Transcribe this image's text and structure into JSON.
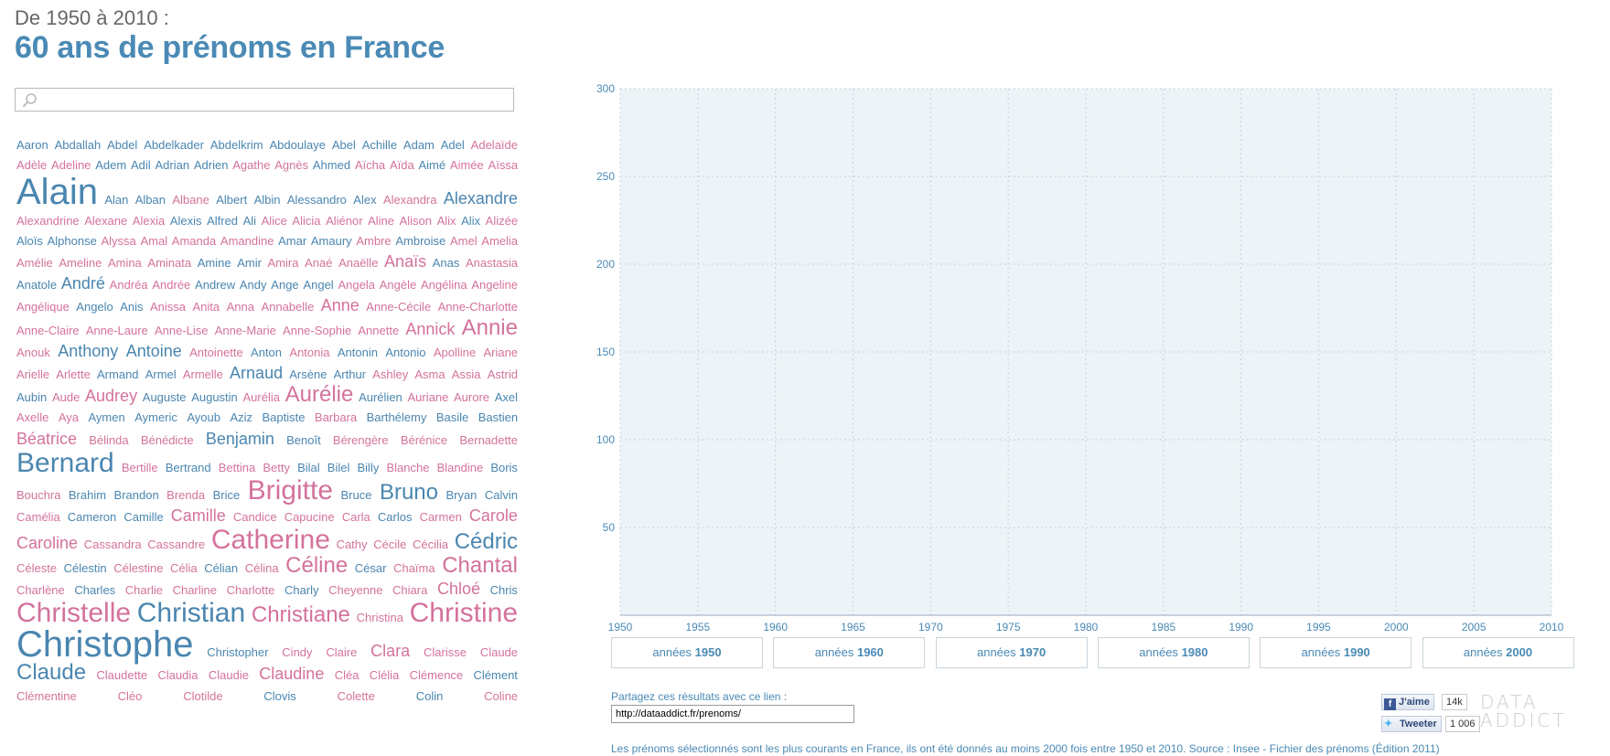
{
  "header": {
    "subtitle": "De 1950 à 2010 :",
    "title": "60 ans de prénoms en France"
  },
  "search": {
    "value": "",
    "placeholder": ""
  },
  "colors": {
    "male": "#4a86b0",
    "female": "#d4729c",
    "chart_background": "#edf4f7",
    "accent": "#4a8ab5"
  },
  "names": [
    {
      "n": "Aaron",
      "g": "m",
      "s": 1
    },
    {
      "n": "Abdallah",
      "g": "m",
      "s": 1
    },
    {
      "n": "Abdel",
      "g": "m",
      "s": 1
    },
    {
      "n": "Abdelkader",
      "g": "m",
      "s": 1
    },
    {
      "n": "Abdelkrim",
      "g": "m",
      "s": 1
    },
    {
      "n": "Abdoulaye",
      "g": "m",
      "s": 1
    },
    {
      "n": "Abel",
      "g": "m",
      "s": 1
    },
    {
      "n": "Achille",
      "g": "m",
      "s": 1
    },
    {
      "n": "Adam",
      "g": "m",
      "s": 1
    },
    {
      "n": "Adel",
      "g": "m",
      "s": 1
    },
    {
      "n": "Adelaïde",
      "g": "f",
      "s": 1
    },
    {
      "n": "Adèle",
      "g": "f",
      "s": 1
    },
    {
      "n": "Adeline",
      "g": "f",
      "s": 1
    },
    {
      "n": "Adem",
      "g": "m",
      "s": 1
    },
    {
      "n": "Adil",
      "g": "m",
      "s": 1
    },
    {
      "n": "Adrian",
      "g": "m",
      "s": 1
    },
    {
      "n": "Adrien",
      "g": "m",
      "s": 1
    },
    {
      "n": "Agathe",
      "g": "f",
      "s": 1
    },
    {
      "n": "Agnès",
      "g": "f",
      "s": 1
    },
    {
      "n": "Ahmed",
      "g": "m",
      "s": 1
    },
    {
      "n": "Aïcha",
      "g": "f",
      "s": 1
    },
    {
      "n": "Aïda",
      "g": "f",
      "s": 1
    },
    {
      "n": "Aimé",
      "g": "m",
      "s": 1
    },
    {
      "n": "Aimée",
      "g": "f",
      "s": 1
    },
    {
      "n": "Aïssa",
      "g": "f",
      "s": 1
    },
    {
      "n": "Alain",
      "g": "m",
      "s": 5
    },
    {
      "n": "Alan",
      "g": "m",
      "s": 1
    },
    {
      "n": "Alban",
      "g": "m",
      "s": 1
    },
    {
      "n": "Albane",
      "g": "f",
      "s": 1
    },
    {
      "n": "Albert",
      "g": "m",
      "s": 1
    },
    {
      "n": "Albin",
      "g": "m",
      "s": 1
    },
    {
      "n": "Alessandro",
      "g": "m",
      "s": 1
    },
    {
      "n": "Alex",
      "g": "m",
      "s": 1
    },
    {
      "n": "Alexandra",
      "g": "f",
      "s": 1
    },
    {
      "n": "Alexandre",
      "g": "m",
      "s": 2
    },
    {
      "n": "Alexandrine",
      "g": "f",
      "s": 1
    },
    {
      "n": "Alexane",
      "g": "f",
      "s": 1
    },
    {
      "n": "Alexia",
      "g": "f",
      "s": 1
    },
    {
      "n": "Alexis",
      "g": "m",
      "s": 1
    },
    {
      "n": "Alfred",
      "g": "m",
      "s": 1
    },
    {
      "n": "Ali",
      "g": "m",
      "s": 1
    },
    {
      "n": "Alice",
      "g": "f",
      "s": 1
    },
    {
      "n": "Alicia",
      "g": "f",
      "s": 1
    },
    {
      "n": "Aliénor",
      "g": "f",
      "s": 1
    },
    {
      "n": "Aline",
      "g": "f",
      "s": 1
    },
    {
      "n": "Alison",
      "g": "f",
      "s": 1
    },
    {
      "n": "Alix",
      "g": "f",
      "s": 1
    },
    {
      "n": "Alix",
      "g": "m",
      "s": 1
    },
    {
      "n": "Alizée",
      "g": "f",
      "s": 1
    },
    {
      "n": "Aloïs",
      "g": "m",
      "s": 1
    },
    {
      "n": "Alphonse",
      "g": "m",
      "s": 1
    },
    {
      "n": "Alyssa",
      "g": "f",
      "s": 1
    },
    {
      "n": "Amal",
      "g": "f",
      "s": 1
    },
    {
      "n": "Amanda",
      "g": "f",
      "s": 1
    },
    {
      "n": "Amandine",
      "g": "f",
      "s": 1
    },
    {
      "n": "Amar",
      "g": "m",
      "s": 1
    },
    {
      "n": "Amaury",
      "g": "m",
      "s": 1
    },
    {
      "n": "Ambre",
      "g": "f",
      "s": 1
    },
    {
      "n": "Ambroise",
      "g": "m",
      "s": 1
    },
    {
      "n": "Amel",
      "g": "f",
      "s": 1
    },
    {
      "n": "Amelia",
      "g": "f",
      "s": 1
    },
    {
      "n": "Amélie",
      "g": "f",
      "s": 1
    },
    {
      "n": "Ameline",
      "g": "f",
      "s": 1
    },
    {
      "n": "Amina",
      "g": "f",
      "s": 1
    },
    {
      "n": "Aminata",
      "g": "f",
      "s": 1
    },
    {
      "n": "Amine",
      "g": "m",
      "s": 1
    },
    {
      "n": "Amir",
      "g": "m",
      "s": 1
    },
    {
      "n": "Amira",
      "g": "f",
      "s": 1
    },
    {
      "n": "Anaé",
      "g": "f",
      "s": 1
    },
    {
      "n": "Anaëlle",
      "g": "f",
      "s": 1
    },
    {
      "n": "Anaïs",
      "g": "f",
      "s": 2
    },
    {
      "n": "Anas",
      "g": "m",
      "s": 1
    },
    {
      "n": "Anastasia",
      "g": "f",
      "s": 1
    },
    {
      "n": "Anatole",
      "g": "m",
      "s": 1
    },
    {
      "n": "André",
      "g": "m",
      "s": 2
    },
    {
      "n": "Andréa",
      "g": "f",
      "s": 1
    },
    {
      "n": "Andrée",
      "g": "f",
      "s": 1
    },
    {
      "n": "Andrew",
      "g": "m",
      "s": 1
    },
    {
      "n": "Andy",
      "g": "m",
      "s": 1
    },
    {
      "n": "Ange",
      "g": "m",
      "s": 1
    },
    {
      "n": "Angel",
      "g": "m",
      "s": 1
    },
    {
      "n": "Angela",
      "g": "f",
      "s": 1
    },
    {
      "n": "Angèle",
      "g": "f",
      "s": 1
    },
    {
      "n": "Angélina",
      "g": "f",
      "s": 1
    },
    {
      "n": "Angeline",
      "g": "f",
      "s": 1
    },
    {
      "n": "Angélique",
      "g": "f",
      "s": 1
    },
    {
      "n": "Angelo",
      "g": "m",
      "s": 1
    },
    {
      "n": "Anis",
      "g": "m",
      "s": 1
    },
    {
      "n": "Anissa",
      "g": "f",
      "s": 1
    },
    {
      "n": "Anita",
      "g": "f",
      "s": 1
    },
    {
      "n": "Anna",
      "g": "f",
      "s": 1
    },
    {
      "n": "Annabelle",
      "g": "f",
      "s": 1
    },
    {
      "n": "Anne",
      "g": "f",
      "s": 2
    },
    {
      "n": "Anne-Cécile",
      "g": "f",
      "s": 1
    },
    {
      "n": "Anne-Charlotte",
      "g": "f",
      "s": 1
    },
    {
      "n": "Anne-Claire",
      "g": "f",
      "s": 1
    },
    {
      "n": "Anne-Laure",
      "g": "f",
      "s": 1
    },
    {
      "n": "Anne-Lise",
      "g": "f",
      "s": 1
    },
    {
      "n": "Anne-Marie",
      "g": "f",
      "s": 1
    },
    {
      "n": "Anne-Sophie",
      "g": "f",
      "s": 1
    },
    {
      "n": "Annette",
      "g": "f",
      "s": 1
    },
    {
      "n": "Annick",
      "g": "f",
      "s": 2
    },
    {
      "n": "Annie",
      "g": "f",
      "s": 3
    },
    {
      "n": "Anouk",
      "g": "f",
      "s": 1
    },
    {
      "n": "Anthony",
      "g": "m",
      "s": 2
    },
    {
      "n": "Antoine",
      "g": "m",
      "s": 2
    },
    {
      "n": "Antoinette",
      "g": "f",
      "s": 1
    },
    {
      "n": "Anton",
      "g": "m",
      "s": 1
    },
    {
      "n": "Antonia",
      "g": "f",
      "s": 1
    },
    {
      "n": "Antonin",
      "g": "m",
      "s": 1
    },
    {
      "n": "Antonio",
      "g": "m",
      "s": 1
    },
    {
      "n": "Apolline",
      "g": "f",
      "s": 1
    },
    {
      "n": "Ariane",
      "g": "f",
      "s": 1
    },
    {
      "n": "Arielle",
      "g": "f",
      "s": 1
    },
    {
      "n": "Arlette",
      "g": "f",
      "s": 1
    },
    {
      "n": "Armand",
      "g": "m",
      "s": 1
    },
    {
      "n": "Armel",
      "g": "m",
      "s": 1
    },
    {
      "n": "Armelle",
      "g": "f",
      "s": 1
    },
    {
      "n": "Arnaud",
      "g": "m",
      "s": 2
    },
    {
      "n": "Arsène",
      "g": "m",
      "s": 1
    },
    {
      "n": "Arthur",
      "g": "m",
      "s": 1
    },
    {
      "n": "Ashley",
      "g": "f",
      "s": 1
    },
    {
      "n": "Asma",
      "g": "f",
      "s": 1
    },
    {
      "n": "Assia",
      "g": "f",
      "s": 1
    },
    {
      "n": "Astrid",
      "g": "f",
      "s": 1
    },
    {
      "n": "Aubin",
      "g": "m",
      "s": 1
    },
    {
      "n": "Aude",
      "g": "f",
      "s": 1
    },
    {
      "n": "Audrey",
      "g": "f",
      "s": 2
    },
    {
      "n": "Auguste",
      "g": "m",
      "s": 1
    },
    {
      "n": "Augustin",
      "g": "m",
      "s": 1
    },
    {
      "n": "Aurélia",
      "g": "f",
      "s": 1
    },
    {
      "n": "Aurélie",
      "g": "f",
      "s": 3
    },
    {
      "n": "Aurélien",
      "g": "m",
      "s": 1
    },
    {
      "n": "Auriane",
      "g": "f",
      "s": 1
    },
    {
      "n": "Aurore",
      "g": "f",
      "s": 1
    },
    {
      "n": "Axel",
      "g": "m",
      "s": 1
    },
    {
      "n": "Axelle",
      "g": "f",
      "s": 1
    },
    {
      "n": "Aya",
      "g": "f",
      "s": 1
    },
    {
      "n": "Aymen",
      "g": "m",
      "s": 1
    },
    {
      "n": "Aymeric",
      "g": "m",
      "s": 1
    },
    {
      "n": "Ayoub",
      "g": "m",
      "s": 1
    },
    {
      "n": "Aziz",
      "g": "m",
      "s": 1
    },
    {
      "n": "Baptiste",
      "g": "m",
      "s": 1
    },
    {
      "n": "Barbara",
      "g": "f",
      "s": 1
    },
    {
      "n": "Barthélemy",
      "g": "m",
      "s": 1
    },
    {
      "n": "Basile",
      "g": "m",
      "s": 1
    },
    {
      "n": "Bastien",
      "g": "m",
      "s": 1
    },
    {
      "n": "Béatrice",
      "g": "f",
      "s": 2
    },
    {
      "n": "Bélinda",
      "g": "f",
      "s": 1
    },
    {
      "n": "Bénédicte",
      "g": "f",
      "s": 1
    },
    {
      "n": "Benjamin",
      "g": "m",
      "s": 2
    },
    {
      "n": "Benoît",
      "g": "m",
      "s": 1
    },
    {
      "n": "Bérengère",
      "g": "f",
      "s": 1
    },
    {
      "n": "Bérénice",
      "g": "f",
      "s": 1
    },
    {
      "n": "Bernadette",
      "g": "f",
      "s": 1
    },
    {
      "n": "Bernard",
      "g": "m",
      "s": 4
    },
    {
      "n": "Bertille",
      "g": "f",
      "s": 1
    },
    {
      "n": "Bertrand",
      "g": "m",
      "s": 1
    },
    {
      "n": "Bettina",
      "g": "f",
      "s": 1
    },
    {
      "n": "Betty",
      "g": "f",
      "s": 1
    },
    {
      "n": "Bilal",
      "g": "m",
      "s": 1
    },
    {
      "n": "Bilel",
      "g": "m",
      "s": 1
    },
    {
      "n": "Billy",
      "g": "m",
      "s": 1
    },
    {
      "n": "Blanche",
      "g": "f",
      "s": 1
    },
    {
      "n": "Blandine",
      "g": "f",
      "s": 1
    },
    {
      "n": "Boris",
      "g": "m",
      "s": 1
    },
    {
      "n": "Bouchra",
      "g": "f",
      "s": 1
    },
    {
      "n": "Brahim",
      "g": "m",
      "s": 1
    },
    {
      "n": "Brandon",
      "g": "m",
      "s": 1
    },
    {
      "n": "Brenda",
      "g": "f",
      "s": 1
    },
    {
      "n": "Brice",
      "g": "m",
      "s": 1
    },
    {
      "n": "Brigitte",
      "g": "f",
      "s": 4
    },
    {
      "n": "Bruce",
      "g": "m",
      "s": 1
    },
    {
      "n": "Bruno",
      "g": "m",
      "s": 3
    },
    {
      "n": "Bryan",
      "g": "m",
      "s": 1
    },
    {
      "n": "Calvin",
      "g": "m",
      "s": 1
    },
    {
      "n": "Camélia",
      "g": "f",
      "s": 1
    },
    {
      "n": "Cameron",
      "g": "m",
      "s": 1
    },
    {
      "n": "Camille",
      "g": "m",
      "s": 1
    },
    {
      "n": "Camille",
      "g": "f",
      "s": 2
    },
    {
      "n": "Candice",
      "g": "f",
      "s": 1
    },
    {
      "n": "Capucine",
      "g": "f",
      "s": 1
    },
    {
      "n": "Carla",
      "g": "f",
      "s": 1
    },
    {
      "n": "Carlos",
      "g": "m",
      "s": 1
    },
    {
      "n": "Carmen",
      "g": "f",
      "s": 1
    },
    {
      "n": "Carole",
      "g": "f",
      "s": 2
    },
    {
      "n": "Caroline",
      "g": "f",
      "s": 2
    },
    {
      "n": "Cassandra",
      "g": "f",
      "s": 1
    },
    {
      "n": "Cassandre",
      "g": "f",
      "s": 1
    },
    {
      "n": "Catherine",
      "g": "f",
      "s": 4
    },
    {
      "n": "Cathy",
      "g": "f",
      "s": 1
    },
    {
      "n": "Cécile",
      "g": "f",
      "s": 1
    },
    {
      "n": "Cécilia",
      "g": "f",
      "s": 1
    },
    {
      "n": "Cédric",
      "g": "m",
      "s": 3
    },
    {
      "n": "Céleste",
      "g": "f",
      "s": 1
    },
    {
      "n": "Célestin",
      "g": "m",
      "s": 1
    },
    {
      "n": "Célestine",
      "g": "f",
      "s": 1
    },
    {
      "n": "Célia",
      "g": "f",
      "s": 1
    },
    {
      "n": "Célian",
      "g": "m",
      "s": 1
    },
    {
      "n": "Célina",
      "g": "f",
      "s": 1
    },
    {
      "n": "Céline",
      "g": "f",
      "s": 3
    },
    {
      "n": "César",
      "g": "m",
      "s": 1
    },
    {
      "n": "Chaïma",
      "g": "f",
      "s": 1
    },
    {
      "n": "Chantal",
      "g": "f",
      "s": 3
    },
    {
      "n": "Charlène",
      "g": "f",
      "s": 1
    },
    {
      "n": "Charles",
      "g": "m",
      "s": 1
    },
    {
      "n": "Charlie",
      "g": "f",
      "s": 1
    },
    {
      "n": "Charline",
      "g": "f",
      "s": 1
    },
    {
      "n": "Charlotte",
      "g": "f",
      "s": 1
    },
    {
      "n": "Charly",
      "g": "m",
      "s": 1
    },
    {
      "n": "Cheyenne",
      "g": "f",
      "s": 1
    },
    {
      "n": "Chiara",
      "g": "f",
      "s": 1
    },
    {
      "n": "Chloé",
      "g": "f",
      "s": 2
    },
    {
      "n": "Chris",
      "g": "m",
      "s": 1
    },
    {
      "n": "Christelle",
      "g": "f",
      "s": 4
    },
    {
      "n": "Christian",
      "g": "m",
      "s": 4
    },
    {
      "n": "Christiane",
      "g": "f",
      "s": 3
    },
    {
      "n": "Christina",
      "g": "f",
      "s": 1
    },
    {
      "n": "Christine",
      "g": "f",
      "s": 4
    },
    {
      "n": "Christophe",
      "g": "m",
      "s": 5
    },
    {
      "n": "Christopher",
      "g": "m",
      "s": 1
    },
    {
      "n": "Cindy",
      "g": "f",
      "s": 1
    },
    {
      "n": "Claire",
      "g": "f",
      "s": 1
    },
    {
      "n": "Clara",
      "g": "f",
      "s": 2
    },
    {
      "n": "Clarisse",
      "g": "f",
      "s": 1
    },
    {
      "n": "Claude",
      "g": "f",
      "s": 1
    },
    {
      "n": "Claude",
      "g": "m",
      "s": 3
    },
    {
      "n": "Claudette",
      "g": "f",
      "s": 1
    },
    {
      "n": "Claudia",
      "g": "f",
      "s": 1
    },
    {
      "n": "Claudie",
      "g": "f",
      "s": 1
    },
    {
      "n": "Claudine",
      "g": "f",
      "s": 2
    },
    {
      "n": "Cléa",
      "g": "f",
      "s": 1
    },
    {
      "n": "Clélia",
      "g": "f",
      "s": 1
    },
    {
      "n": "Clémence",
      "g": "f",
      "s": 1
    },
    {
      "n": "Clément",
      "g": "m",
      "s": 1
    },
    {
      "n": "Clémentine",
      "g": "f",
      "s": 1
    },
    {
      "n": "Cléo",
      "g": "f",
      "s": 1
    },
    {
      "n": "Clotilde",
      "g": "f",
      "s": 1
    },
    {
      "n": "Clovis",
      "g": "m",
      "s": 1
    },
    {
      "n": "Colette",
      "g": "f",
      "s": 1
    },
    {
      "n": "Colin",
      "g": "m",
      "s": 1
    },
    {
      "n": "Coline",
      "g": "f",
      "s": 1
    }
  ],
  "chart_data": {
    "type": "line",
    "title": "",
    "xlabel": "",
    "ylabel": "",
    "xlim": [
      1950,
      2010
    ],
    "ylim": [
      0,
      300
    ],
    "x_ticks": [
      1950,
      1955,
      1960,
      1965,
      1970,
      1975,
      1980,
      1985,
      1990,
      1995,
      2000,
      2005,
      2010
    ],
    "y_ticks": [
      50,
      100,
      150,
      200,
      250,
      300
    ],
    "grid": true,
    "grid_style": "dotted",
    "series": []
  },
  "period_buttons": [
    {
      "prefix": "années",
      "decade": "1950"
    },
    {
      "prefix": "années",
      "decade": "1960"
    },
    {
      "prefix": "années",
      "decade": "1970"
    },
    {
      "prefix": "années",
      "decade": "1980"
    },
    {
      "prefix": "années",
      "decade": "1990"
    },
    {
      "prefix": "années",
      "decade": "2000"
    }
  ],
  "share": {
    "label": "Partagez ces résultats avec ce lien :",
    "url": "http://dataaddict.fr/prenoms/"
  },
  "social": {
    "facebook_label": "J'aime",
    "facebook_count": "14k",
    "twitter_label": "Tweeter",
    "twitter_count": "1 006"
  },
  "brand": {
    "line1": "DATA",
    "line2": "ADDICT"
  },
  "footer_note": "Les prénoms sélectionnés sont les plus courants en France, ils ont été donnés au moins 2000 fois entre 1950 et 2010. Source : Insee - Fichier des prénoms (Édition 2011)"
}
